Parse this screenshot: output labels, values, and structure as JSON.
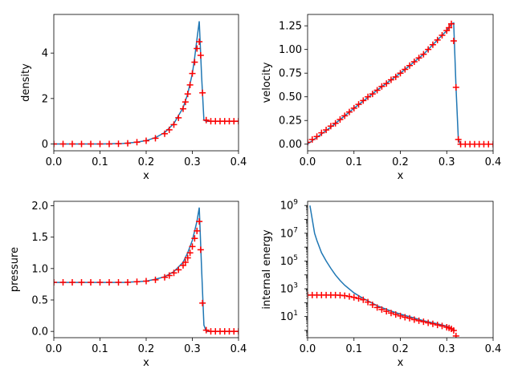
{
  "colors": {
    "line": "#1f77b4",
    "marker": "#ff0000"
  },
  "chart_data": [
    {
      "type": "line",
      "xlabel": "x",
      "ylabel": "density",
      "xlim": [
        0.0,
        0.4
      ],
      "ylim": [
        -0.3,
        5.7
      ],
      "yscale": "linear",
      "xticks": [
        0.0,
        0.1,
        0.2,
        0.3,
        0.4
      ],
      "xtick_labels": [
        "0.0",
        "0.1",
        "0.2",
        "0.3",
        "0.4"
      ],
      "yticks": [
        0,
        2,
        4
      ],
      "ytick_labels": [
        "0",
        "2",
        "4"
      ],
      "grid": false,
      "series": [
        {
          "style": "line",
          "x": [
            0.0,
            0.05,
            0.1,
            0.15,
            0.18,
            0.2,
            0.22,
            0.24,
            0.26,
            0.28,
            0.29,
            0.3,
            0.305,
            0.31,
            0.315,
            0.32,
            0.325,
            0.33,
            0.35,
            0.4
          ],
          "y": [
            0.0,
            0.0,
            0.0,
            0.02,
            0.08,
            0.15,
            0.28,
            0.5,
            0.9,
            1.6,
            2.2,
            3.1,
            3.8,
            4.6,
            5.4,
            3.0,
            1.05,
            1.0,
            1.0,
            1.0
          ]
        },
        {
          "style": "markers",
          "x": [
            0.0,
            0.02,
            0.04,
            0.06,
            0.08,
            0.1,
            0.12,
            0.14,
            0.16,
            0.18,
            0.2,
            0.22,
            0.24,
            0.25,
            0.26,
            0.27,
            0.28,
            0.285,
            0.29,
            0.295,
            0.3,
            0.305,
            0.31,
            0.315,
            0.318,
            0.322,
            0.33,
            0.34,
            0.35,
            0.36,
            0.37,
            0.38,
            0.39,
            0.4
          ],
          "y": [
            0.0,
            0.0,
            0.0,
            0.0,
            0.0,
            0.0,
            0.0,
            0.01,
            0.03,
            0.08,
            0.14,
            0.25,
            0.45,
            0.62,
            0.85,
            1.15,
            1.55,
            1.85,
            2.2,
            2.6,
            3.1,
            3.6,
            4.2,
            4.5,
            3.9,
            2.25,
            1.05,
            1.0,
            1.0,
            1.0,
            1.0,
            1.0,
            1.0,
            1.0
          ]
        }
      ]
    },
    {
      "type": "line",
      "xlabel": "x",
      "ylabel": "velocity",
      "xlim": [
        0.0,
        0.4
      ],
      "ylim": [
        -0.07,
        1.37
      ],
      "yscale": "linear",
      "xticks": [
        0.0,
        0.1,
        0.2,
        0.3,
        0.4
      ],
      "xtick_labels": [
        "0.0",
        "0.1",
        "0.2",
        "0.3",
        "0.4"
      ],
      "yticks": [
        0.0,
        0.25,
        0.5,
        0.75,
        1.0,
        1.25
      ],
      "ytick_labels": [
        "0.00",
        "0.25",
        "0.50",
        "0.75",
        "1.00",
        "1.25"
      ],
      "grid": false,
      "series": [
        {
          "style": "line",
          "x": [
            0.0,
            0.05,
            0.1,
            0.15,
            0.2,
            0.25,
            0.28,
            0.3,
            0.31,
            0.315,
            0.32,
            0.325,
            0.33,
            0.4
          ],
          "y": [
            0.0,
            0.18,
            0.38,
            0.57,
            0.75,
            0.95,
            1.1,
            1.2,
            1.27,
            1.28,
            0.6,
            0.05,
            0.0,
            0.0
          ]
        },
        {
          "style": "markers",
          "x": [
            0.0,
            0.01,
            0.02,
            0.03,
            0.04,
            0.05,
            0.06,
            0.07,
            0.08,
            0.09,
            0.1,
            0.11,
            0.12,
            0.13,
            0.14,
            0.15,
            0.16,
            0.17,
            0.18,
            0.19,
            0.2,
            0.21,
            0.22,
            0.23,
            0.24,
            0.25,
            0.26,
            0.27,
            0.28,
            0.29,
            0.3,
            0.305,
            0.31,
            0.315,
            0.32,
            0.325,
            0.33,
            0.34,
            0.35,
            0.36,
            0.37,
            0.38,
            0.39,
            0.4
          ],
          "y": [
            0.02,
            0.05,
            0.08,
            0.12,
            0.15,
            0.19,
            0.22,
            0.26,
            0.3,
            0.34,
            0.38,
            0.42,
            0.46,
            0.5,
            0.53,
            0.57,
            0.61,
            0.64,
            0.68,
            0.71,
            0.75,
            0.79,
            0.83,
            0.87,
            0.91,
            0.95,
            1.0,
            1.05,
            1.1,
            1.15,
            1.2,
            1.23,
            1.27,
            1.09,
            0.6,
            0.05,
            0.0,
            0.0,
            0.0,
            0.0,
            0.0,
            0.0,
            0.0,
            0.0
          ]
        }
      ]
    },
    {
      "type": "line",
      "xlabel": "x",
      "ylabel": "pressure",
      "xlim": [
        0.0,
        0.4
      ],
      "ylim": [
        -0.1,
        2.07
      ],
      "yscale": "linear",
      "xticks": [
        0.0,
        0.1,
        0.2,
        0.3,
        0.4
      ],
      "xtick_labels": [
        "0.0",
        "0.1",
        "0.2",
        "0.3",
        "0.4"
      ],
      "yticks": [
        0.0,
        0.5,
        1.0,
        1.5,
        2.0
      ],
      "ytick_labels": [
        "0.0",
        "0.5",
        "1.0",
        "1.5",
        "2.0"
      ],
      "grid": false,
      "series": [
        {
          "style": "line",
          "x": [
            0.0,
            0.1,
            0.15,
            0.18,
            0.2,
            0.22,
            0.24,
            0.26,
            0.28,
            0.29,
            0.3,
            0.305,
            0.31,
            0.315,
            0.32,
            0.325,
            0.33,
            0.4
          ],
          "y": [
            0.78,
            0.78,
            0.78,
            0.79,
            0.8,
            0.83,
            0.87,
            0.95,
            1.1,
            1.25,
            1.45,
            1.6,
            1.75,
            1.97,
            1.0,
            0.1,
            0.0,
            0.0
          ]
        },
        {
          "style": "markers",
          "x": [
            0.0,
            0.02,
            0.04,
            0.06,
            0.08,
            0.1,
            0.12,
            0.14,
            0.16,
            0.18,
            0.2,
            0.22,
            0.24,
            0.25,
            0.26,
            0.27,
            0.28,
            0.285,
            0.29,
            0.295,
            0.3,
            0.305,
            0.31,
            0.315,
            0.318,
            0.322,
            0.33,
            0.34,
            0.35,
            0.36,
            0.37,
            0.38,
            0.39,
            0.4
          ],
          "y": [
            0.78,
            0.78,
            0.78,
            0.78,
            0.78,
            0.78,
            0.78,
            0.78,
            0.78,
            0.79,
            0.8,
            0.82,
            0.86,
            0.89,
            0.93,
            0.98,
            1.05,
            1.1,
            1.17,
            1.25,
            1.35,
            1.48,
            1.6,
            1.75,
            1.3,
            0.45,
            0.02,
            0.0,
            0.0,
            0.0,
            0.0,
            0.0,
            0.0,
            0.0
          ]
        }
      ]
    },
    {
      "type": "line",
      "xlabel": "x",
      "ylabel": "internal energy",
      "xlim": [
        0.0,
        0.4
      ],
      "ylim": [
        0.3,
        2000000000
      ],
      "yscale": "log",
      "xticks": [
        0.0,
        0.1,
        0.2,
        0.3,
        0.4
      ],
      "xtick_labels": [
        "0.0",
        "0.1",
        "0.2",
        "0.3",
        "0.4"
      ],
      "yticks": [
        10,
        1000,
        100000,
        10000000,
        1000000000
      ],
      "ytick_labels": [
        "10^1",
        "10^3",
        "10^5",
        "10^7",
        "10^9"
      ],
      "grid": false,
      "series": [
        {
          "style": "line",
          "x": [
            0.005,
            0.01,
            0.015,
            0.02,
            0.03,
            0.04,
            0.05,
            0.06,
            0.07,
            0.08,
            0.1,
            0.12,
            0.15,
            0.18,
            0.2,
            0.25,
            0.28,
            0.3,
            0.31,
            0.318
          ],
          "y": [
            1000000000,
            100000000,
            10000000,
            3000000,
            400000,
            100000,
            30000,
            10000,
            4000,
            1800,
            500,
            200,
            60,
            25,
            15,
            5,
            3,
            2,
            1.5,
            0.9
          ]
        },
        {
          "style": "markers",
          "x": [
            0.0,
            0.01,
            0.02,
            0.03,
            0.04,
            0.05,
            0.06,
            0.07,
            0.08,
            0.09,
            0.1,
            0.11,
            0.12,
            0.13,
            0.14,
            0.15,
            0.16,
            0.17,
            0.18,
            0.19,
            0.2,
            0.21,
            0.22,
            0.23,
            0.24,
            0.25,
            0.26,
            0.27,
            0.28,
            0.29,
            0.3,
            0.305,
            0.31,
            0.315,
            0.32
          ],
          "y": [
            350,
            350,
            350,
            350,
            350,
            350,
            350,
            340,
            320,
            280,
            240,
            200,
            160,
            110,
            70,
            45,
            32,
            24,
            18,
            14,
            11,
            9,
            7.5,
            6,
            5,
            4.2,
            3.5,
            3,
            2.5,
            2.1,
            1.7,
            1.5,
            1.3,
            1.0,
            0.4
          ]
        }
      ]
    }
  ]
}
